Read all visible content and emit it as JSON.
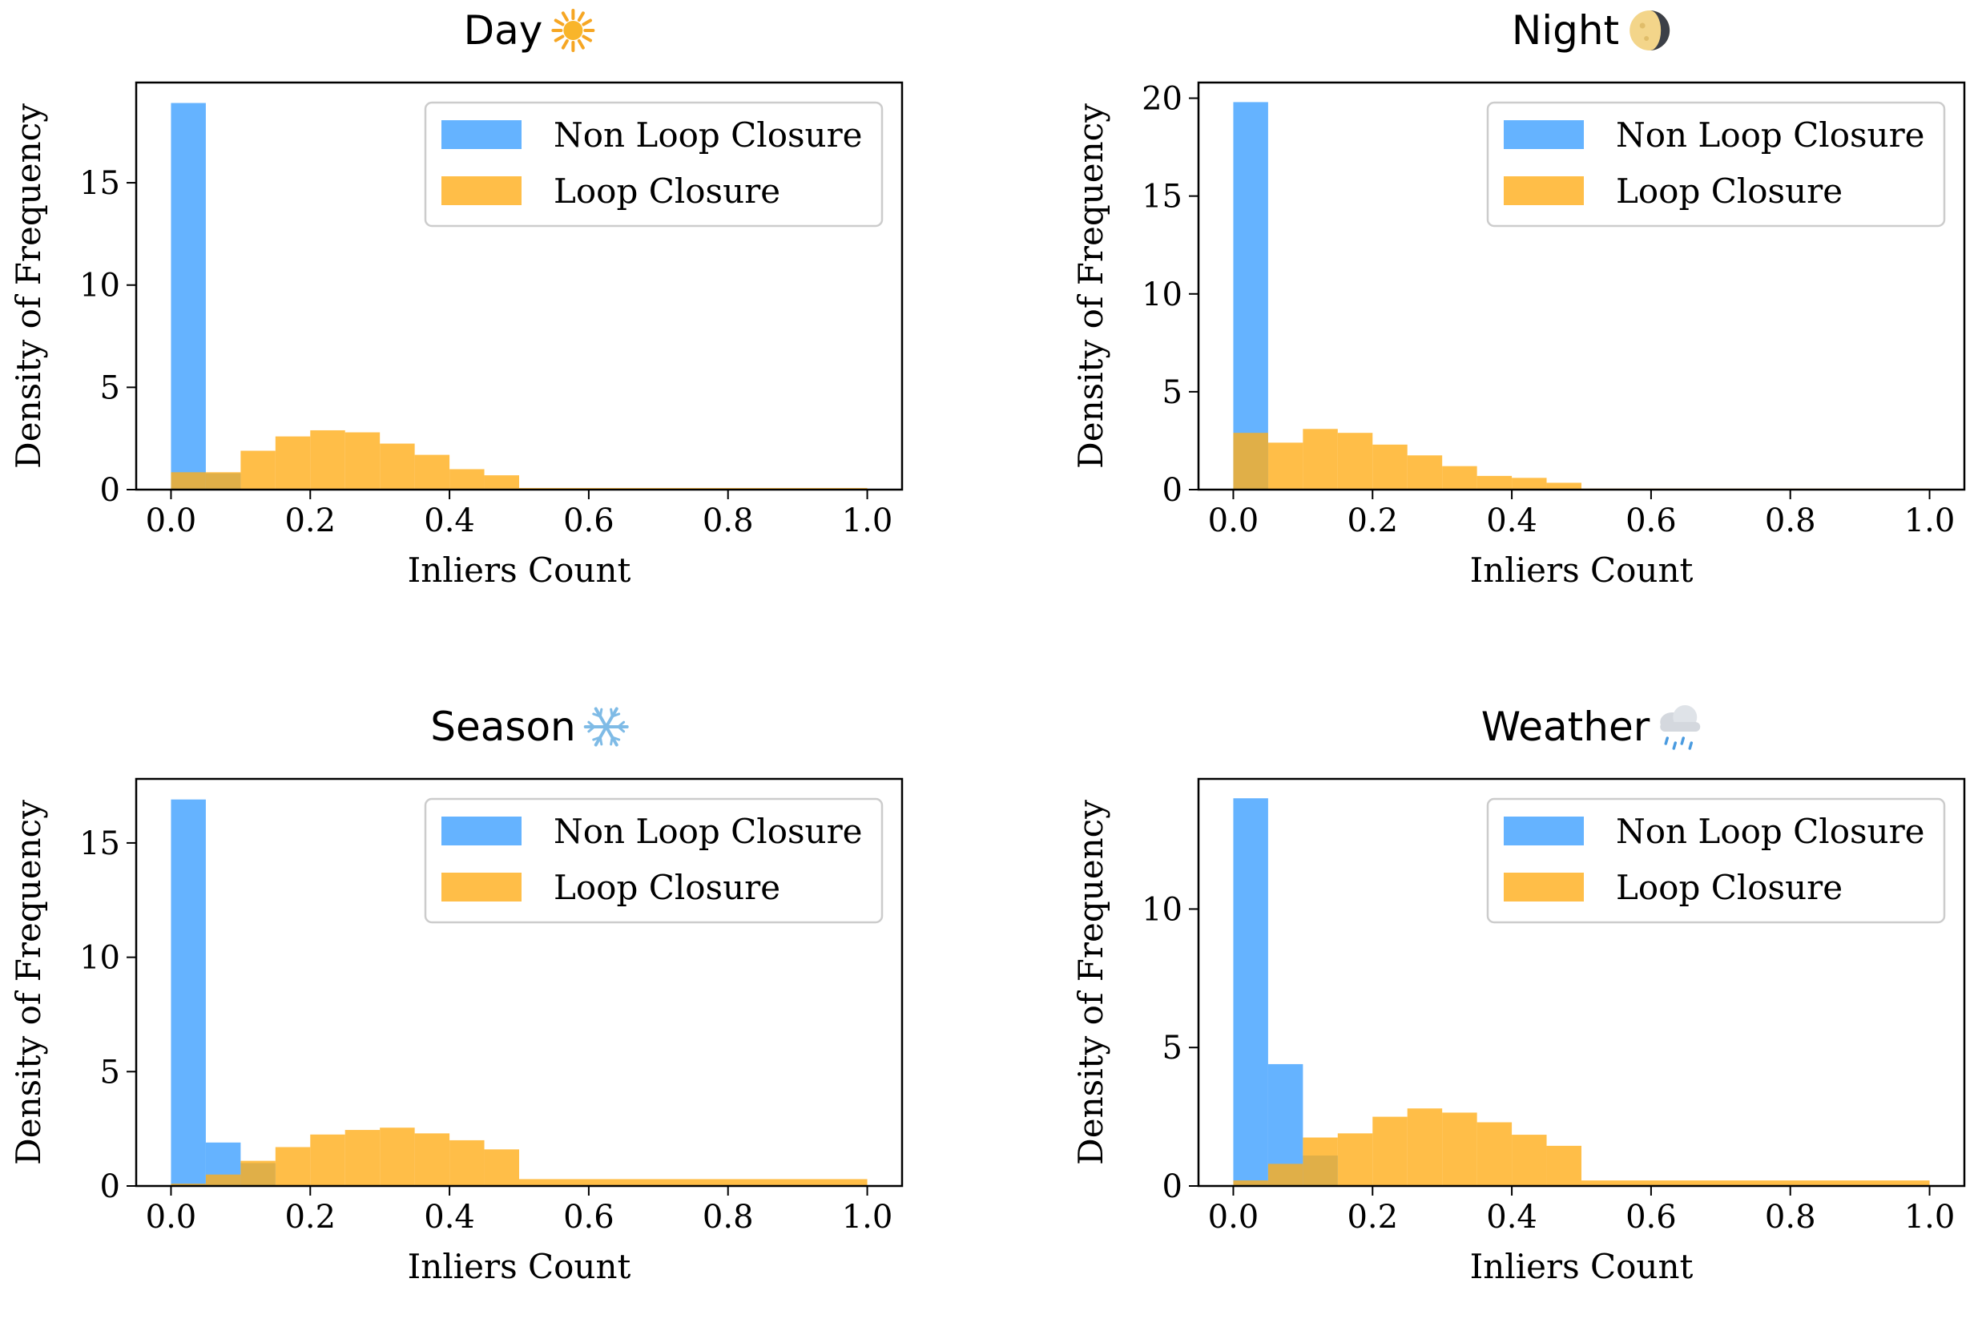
{
  "colors": {
    "non_loop_closure": "#3fa0ff",
    "loop_closure": "#ffae1a",
    "axis": "#000000",
    "legend_border": "#cccccc"
  },
  "chart_data": [
    {
      "type": "bar",
      "title": "Day",
      "title_icon": "sun-icon",
      "xlabel": "Inliers Count",
      "ylabel": "Density of Frequency",
      "xlim": [
        -0.05,
        1.05
      ],
      "ylim": [
        0,
        19.9
      ],
      "xticks": [
        0.0,
        0.2,
        0.4,
        0.6,
        0.8,
        1.0
      ],
      "xtick_labels": [
        "0.0",
        "0.2",
        "0.4",
        "0.6",
        "0.8",
        "1.0"
      ],
      "yticks": [
        0,
        5,
        10,
        15
      ],
      "ytick_labels": [
        "0",
        "5",
        "10",
        "15"
      ],
      "legend_position": "upper right",
      "grid": false,
      "series": [
        {
          "name": "Non Loop Closure",
          "color": "#3fa0ff",
          "bins": [
            [
              0.0,
              0.05,
              18.9
            ],
            [
              0.05,
              0.1,
              0.8
            ]
          ]
        },
        {
          "name": "Loop Closure",
          "color": "#ffae1a",
          "bins": [
            [
              0.0,
              0.05,
              0.85
            ],
            [
              0.05,
              0.1,
              0.85
            ],
            [
              0.1,
              0.15,
              1.9
            ],
            [
              0.15,
              0.2,
              2.6
            ],
            [
              0.2,
              0.25,
              2.9
            ],
            [
              0.25,
              0.3,
              2.8
            ],
            [
              0.3,
              0.35,
              2.25
            ],
            [
              0.35,
              0.4,
              1.7
            ],
            [
              0.4,
              0.45,
              1.0
            ],
            [
              0.45,
              0.5,
              0.7
            ],
            [
              0.5,
              1.0,
              0.08
            ]
          ]
        }
      ]
    },
    {
      "type": "bar",
      "title": "Night",
      "title_icon": "moon-icon",
      "xlabel": "Inliers Count",
      "ylabel": "Density of Frequency",
      "xlim": [
        -0.05,
        1.05
      ],
      "ylim": [
        0,
        20.8
      ],
      "xticks": [
        0.0,
        0.2,
        0.4,
        0.6,
        0.8,
        1.0
      ],
      "xtick_labels": [
        "0.0",
        "0.2",
        "0.4",
        "0.6",
        "0.8",
        "1.0"
      ],
      "yticks": [
        0,
        5,
        10,
        15,
        20
      ],
      "ytick_labels": [
        "0",
        "5",
        "10",
        "15",
        "20"
      ],
      "legend_position": "upper right",
      "grid": false,
      "series": [
        {
          "name": "Non Loop Closure",
          "color": "#3fa0ff",
          "bins": [
            [
              0.0,
              0.05,
              19.8
            ]
          ]
        },
        {
          "name": "Loop Closure",
          "color": "#ffae1a",
          "bins": [
            [
              0.0,
              0.05,
              2.9
            ],
            [
              0.05,
              0.1,
              2.4
            ],
            [
              0.1,
              0.15,
              3.1
            ],
            [
              0.15,
              0.2,
              2.9
            ],
            [
              0.2,
              0.25,
              2.3
            ],
            [
              0.25,
              0.3,
              1.75
            ],
            [
              0.3,
              0.35,
              1.2
            ],
            [
              0.35,
              0.4,
              0.7
            ],
            [
              0.4,
              0.45,
              0.6
            ],
            [
              0.45,
              0.5,
              0.35
            ],
            [
              0.5,
              1.0,
              0.05
            ]
          ]
        }
      ]
    },
    {
      "type": "bar",
      "title": "Season",
      "title_icon": "snowflake-icon",
      "xlabel": "Inliers Count",
      "ylabel": "Density of Frequency",
      "xlim": [
        -0.05,
        1.05
      ],
      "ylim": [
        0,
        17.8
      ],
      "xticks": [
        0.0,
        0.2,
        0.4,
        0.6,
        0.8,
        1.0
      ],
      "xtick_labels": [
        "0.0",
        "0.2",
        "0.4",
        "0.6",
        "0.8",
        "1.0"
      ],
      "yticks": [
        0,
        5,
        10,
        15
      ],
      "ytick_labels": [
        "0",
        "5",
        "10",
        "15"
      ],
      "legend_position": "upper right",
      "grid": false,
      "series": [
        {
          "name": "Non Loop Closure",
          "color": "#3fa0ff",
          "bins": [
            [
              0.0,
              0.05,
              16.9
            ],
            [
              0.05,
              0.1,
              1.9
            ],
            [
              0.1,
              0.15,
              1.0
            ]
          ]
        },
        {
          "name": "Loop Closure",
          "color": "#ffae1a",
          "bins": [
            [
              0.0,
              0.05,
              0.1
            ],
            [
              0.05,
              0.1,
              0.5
            ],
            [
              0.1,
              0.15,
              1.1
            ],
            [
              0.15,
              0.2,
              1.7
            ],
            [
              0.2,
              0.25,
              2.25
            ],
            [
              0.25,
              0.3,
              2.45
            ],
            [
              0.3,
              0.35,
              2.55
            ],
            [
              0.35,
              0.4,
              2.3
            ],
            [
              0.4,
              0.45,
              2.0
            ],
            [
              0.45,
              0.5,
              1.6
            ],
            [
              0.5,
              1.0,
              0.3
            ]
          ]
        }
      ]
    },
    {
      "type": "bar",
      "title": "Weather",
      "title_icon": "rain-cloud-icon",
      "xlabel": "Inliers Count",
      "ylabel": "Density of Frequency",
      "xlim": [
        -0.05,
        1.05
      ],
      "ylim": [
        0,
        14.7
      ],
      "xticks": [
        0.0,
        0.2,
        0.4,
        0.6,
        0.8,
        1.0
      ],
      "xtick_labels": [
        "0.0",
        "0.2",
        "0.4",
        "0.6",
        "0.8",
        "1.0"
      ],
      "yticks": [
        0,
        5,
        10
      ],
      "ytick_labels": [
        "0",
        "5",
        "10"
      ],
      "legend_position": "upper right",
      "grid": false,
      "series": [
        {
          "name": "Non Loop Closure",
          "color": "#3fa0ff",
          "bins": [
            [
              0.0,
              0.05,
              14.0
            ],
            [
              0.05,
              0.1,
              4.4
            ],
            [
              0.1,
              0.15,
              1.1
            ]
          ]
        },
        {
          "name": "Loop Closure",
          "color": "#ffae1a",
          "bins": [
            [
              0.0,
              0.05,
              0.2
            ],
            [
              0.05,
              0.1,
              0.8
            ],
            [
              0.1,
              0.15,
              1.75
            ],
            [
              0.15,
              0.2,
              1.9
            ],
            [
              0.2,
              0.25,
              2.5
            ],
            [
              0.25,
              0.3,
              2.8
            ],
            [
              0.3,
              0.35,
              2.65
            ],
            [
              0.35,
              0.4,
              2.3
            ],
            [
              0.4,
              0.45,
              1.85
            ],
            [
              0.45,
              0.5,
              1.45
            ],
            [
              0.5,
              1.0,
              0.2
            ]
          ]
        }
      ]
    }
  ]
}
